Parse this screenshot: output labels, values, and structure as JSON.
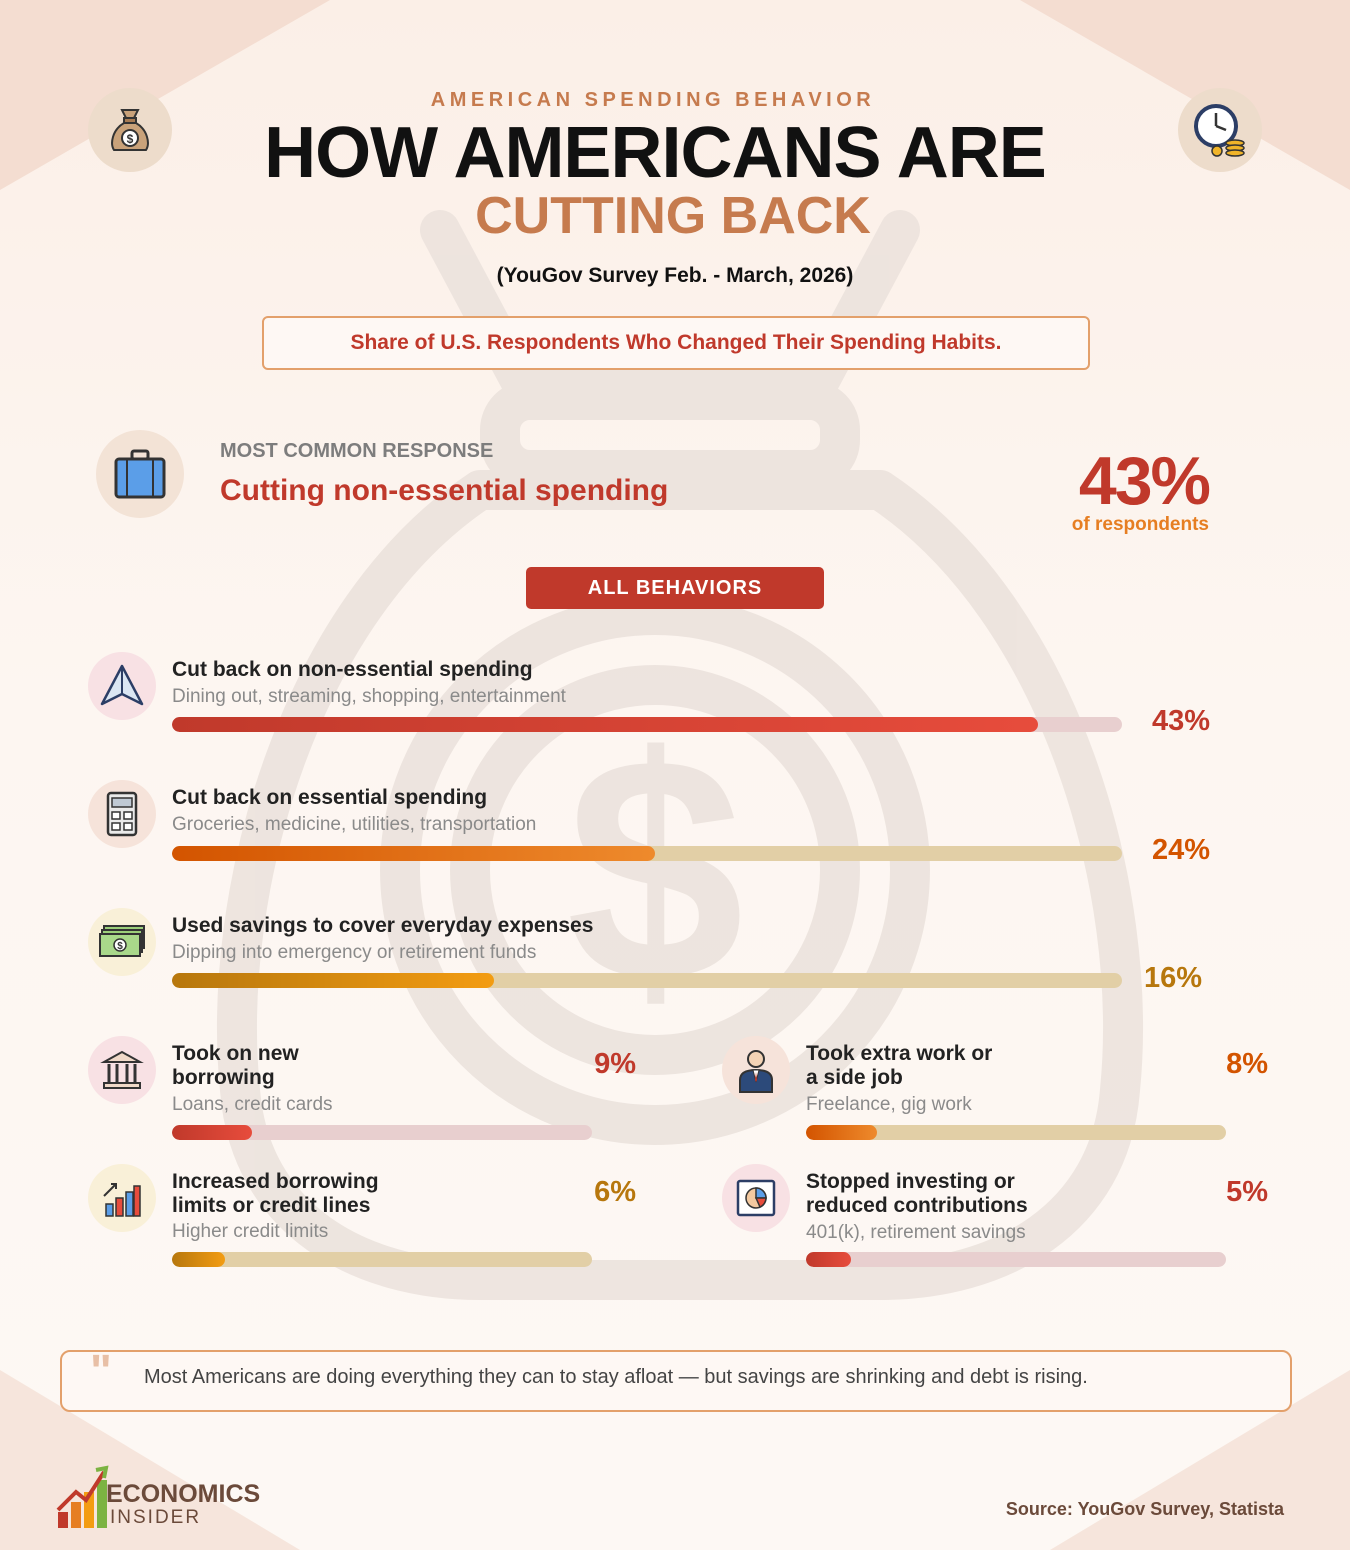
{
  "header": {
    "kicker": "AMERICAN SPENDING BEHAVIOR",
    "title_line1": "HOW AMERICANS ARE",
    "title_line2": "CUTTING BACK",
    "survey": "(YouGov Survey Feb. - March, 2026)",
    "subtitle": "Share of U.S. Respondents Who Changed Their Spending Habits.",
    "left_icon": "money-bag-icon",
    "right_icon": "clock-coins-icon"
  },
  "most_common": {
    "label": "MOST COMMON RESPONSE",
    "text": "Cutting non-essential spending",
    "percent": "43%",
    "percent_sub": "of respondents",
    "icon": "briefcase-icon"
  },
  "all_behaviors_label": "ALL BEHAVIORS",
  "chart_data": {
    "type": "bar",
    "unit": "%",
    "categories": [
      "Cut back on non-essential spending",
      "Cut back on essential spending",
      "Used savings to cover everyday expenses",
      "Took on new borrowing",
      "Took extra work or a side job",
      "Increased borrowing limits or credit lines",
      "Stopped investing or reduced contributions"
    ],
    "values": [
      43,
      24,
      16,
      9,
      8,
      6,
      5
    ]
  },
  "items": [
    {
      "title": "Cut back on non-essential spending",
      "subtitle": "Dining out, streaming, shopping, entertainment",
      "value": 43,
      "label": "43%",
      "icon": "paper-plane-icon",
      "color": "#c0392b"
    },
    {
      "title": "Cut back on essential spending",
      "subtitle": "Groceries, medicine, utilities, transportation",
      "value": 24,
      "label": "24%",
      "icon": "calculator-icon",
      "color": "#d35400"
    },
    {
      "title": "Used savings to cover everyday expenses",
      "subtitle": "Dipping into emergency or retirement funds",
      "value": 16,
      "label": "16%",
      "icon": "cash-stack-icon",
      "color": "#b7770d"
    },
    {
      "title_l1": "Took on new",
      "title_l2": "borrowing",
      "subtitle": "Loans, credit cards",
      "value": 9,
      "label": "9%",
      "icon": "bank-icon",
      "color": "#c0392b"
    },
    {
      "title_l1": "Took extra work or",
      "title_l2": "a side job",
      "subtitle": "Freelance, gig work",
      "value": 8,
      "label": "8%",
      "icon": "businessman-icon",
      "color": "#d35400"
    },
    {
      "title_l1": "Increased borrowing",
      "title_l2": "limits or credit lines",
      "subtitle": "Higher credit limits",
      "value": 6,
      "label": "6%",
      "icon": "bar-chart-up-icon",
      "color": "#b7770d"
    },
    {
      "title_l1": "Stopped investing or",
      "title_l2": "reduced contributions",
      "subtitle": "401(k), retirement savings",
      "value": 5,
      "label": "5%",
      "icon": "pie-chart-board-icon",
      "color": "#c0392b"
    }
  ],
  "quote": "Most Americans are doing everything they can to stay afloat — but savings are shrinking and debt is rising.",
  "footer": {
    "logo_line1": "ECONOMICS",
    "logo_line2": "INSIDER",
    "source": "Source: YouGov Survey, Statista"
  }
}
